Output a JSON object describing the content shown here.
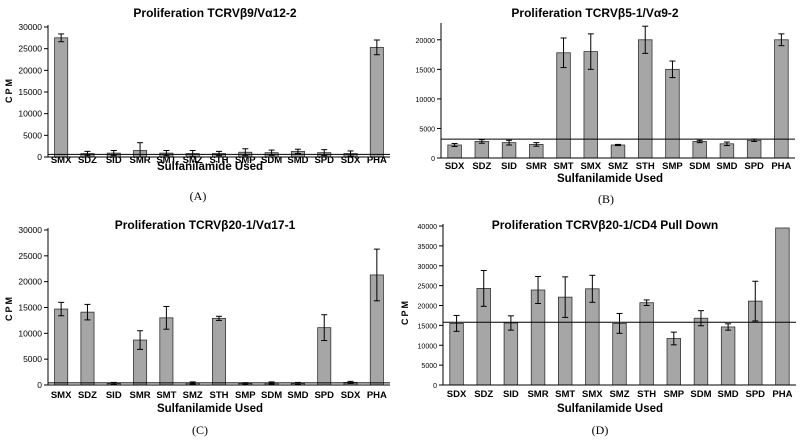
{
  "charts": [
    {
      "panel": "(A)",
      "chart_data": {
        "type": "bar",
        "title": "Proliferation TCRVβ9/Vα12-2",
        "xlabel": "Sulfanilamide Used",
        "ylabel": "CPM",
        "ylim": [
          0,
          30000
        ],
        "yticks": [
          0,
          5000,
          10000,
          15000,
          20000,
          25000,
          30000
        ],
        "ytick_labels": [
          "0",
          "5000",
          "10000",
          "15000",
          "20000",
          "25000",
          "30000"
        ],
        "categories": [
          "SMX",
          "SDZ",
          "SID",
          "SMR",
          "SMT",
          "SMZ",
          "STH",
          "SMP",
          "SDM",
          "SMD",
          "SPD",
          "SDX",
          "PHA"
        ],
        "values": [
          27500,
          800,
          900,
          1500,
          900,
          800,
          800,
          1100,
          1000,
          1300,
          1000,
          800,
          25300
        ],
        "errors": [
          900,
          500,
          600,
          1800,
          600,
          700,
          500,
          800,
          600,
          500,
          700,
          600,
          1700
        ],
        "reference_line": 600,
        "bar_color": "#a6a6a6",
        "grid": false
      }
    },
    {
      "panel": "(B)",
      "chart_data": {
        "type": "bar",
        "title": "Proliferation TCRVβ5-1/Vα9-2",
        "xlabel": "Sulfanilamide Used",
        "ylabel": "",
        "ylim": [
          0,
          22500
        ],
        "yticks": [
          0,
          5000,
          10000,
          15000,
          20000
        ],
        "ytick_labels": [
          "0",
          "5000",
          "10000",
          "15000",
          "20000"
        ],
        "categories": [
          "SDX",
          "SDZ",
          "SID",
          "SMR",
          "SMT",
          "SMX",
          "SMZ",
          "STH",
          "SMP",
          "SDM",
          "SMD",
          "SPD",
          "PHA"
        ],
        "values": [
          2200,
          2800,
          2600,
          2300,
          17800,
          18000,
          2200,
          20000,
          15000,
          2800,
          2400,
          3000,
          20000
        ],
        "errors": [
          250,
          300,
          400,
          300,
          2500,
          3000,
          100,
          2300,
          1400,
          200,
          300,
          200,
          1000
        ],
        "reference_line": 3200,
        "bar_color": "#a6a6a6",
        "grid": false
      }
    },
    {
      "panel": "(C)",
      "chart_data": {
        "type": "bar",
        "title": "Proliferation TCRVβ20-1/Vα17-1",
        "xlabel": "Sulfanilamide Used",
        "ylabel": "CPM",
        "ylim": [
          0,
          30000
        ],
        "yticks": [
          0,
          5000,
          10000,
          15000,
          20000,
          25000,
          30000
        ],
        "ytick_labels": [
          "0",
          "5000",
          "10000",
          "15000",
          "20000",
          "25000",
          "30000"
        ],
        "categories": [
          "SMX",
          "SDZ",
          "SID",
          "SMR",
          "SMT",
          "SMZ",
          "STH",
          "SMP",
          "SDM",
          "SMD",
          "SPD",
          "SDX",
          "PHA"
        ],
        "values": [
          14700,
          14100,
          300,
          8700,
          13000,
          400,
          12900,
          300,
          400,
          300,
          11100,
          500,
          21300
        ],
        "errors": [
          1300,
          1500,
          200,
          1800,
          2200,
          200,
          400,
          150,
          200,
          200,
          2500,
          200,
          5000
        ],
        "reference_line": 400,
        "bar_color": "#a6a6a6",
        "grid": false
      }
    },
    {
      "panel": "(D)",
      "chart_data": {
        "type": "bar",
        "title": "Proliferation TCRVβ20-1/CD4 Pull Down",
        "xlabel": "Sulfanilamide Used",
        "ylabel": "CPM",
        "ylim": [
          0,
          40000
        ],
        "yticks": [
          0,
          5000,
          10000,
          15000,
          20000,
          25000,
          30000,
          35000,
          40000
        ],
        "ytick_labels": [
          "0",
          "5000",
          "10000",
          "15000",
          "20000",
          "25000",
          "30000",
          "35000",
          "40000"
        ],
        "categories": [
          "SDX",
          "SDZ",
          "SID",
          "SMR",
          "SMT",
          "SMX",
          "SMZ",
          "STH",
          "SMP",
          "SDM",
          "SMD",
          "SPD",
          "PHA"
        ],
        "values": [
          15500,
          24300,
          15600,
          23900,
          22100,
          24200,
          15500,
          20700,
          11700,
          16800,
          14600,
          21100,
          39500
        ],
        "errors": [
          2000,
          4500,
          1800,
          3400,
          5100,
          3400,
          2500,
          700,
          1600,
          1900,
          800,
          5000,
          0
        ],
        "reference_line": 15800,
        "bar_color": "#a6a6a6",
        "grid": false
      }
    }
  ]
}
